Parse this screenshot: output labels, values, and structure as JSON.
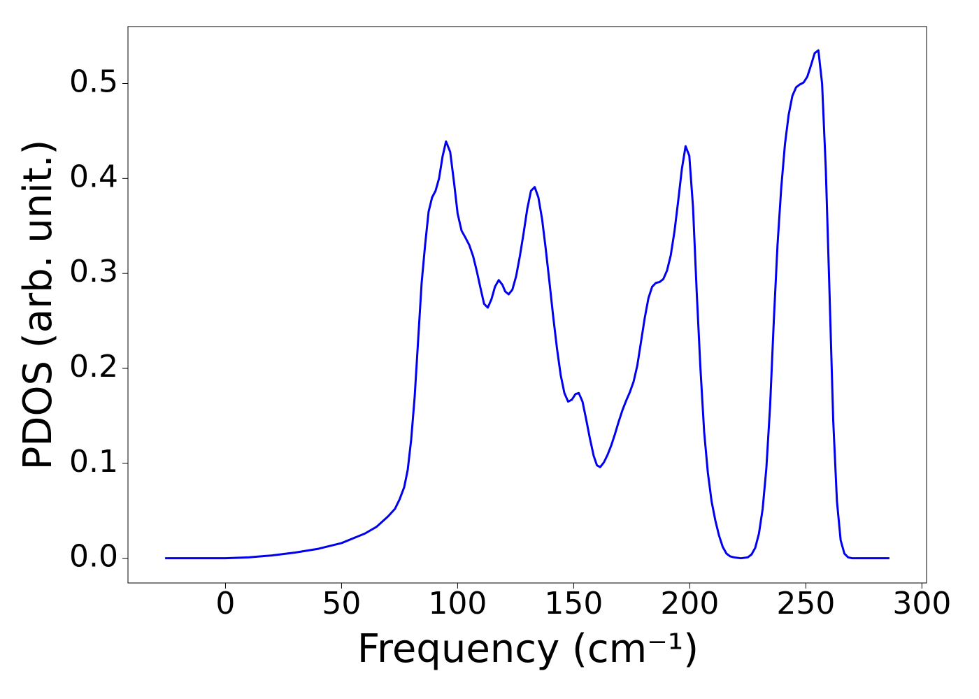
{
  "chart_data": {
    "type": "line",
    "xlabel": "Frequency (cm⁻¹)",
    "ylabel": "PDOS (arb. unit.)",
    "xlim": [
      -42,
      302
    ],
    "ylim": [
      -0.026,
      0.56
    ],
    "xticks": [
      0,
      50,
      100,
      150,
      200,
      250,
      300
    ],
    "yticks": [
      {
        "value": 0,
        "label": "0.0"
      },
      0.1,
      0.2,
      0.3,
      0.4,
      0.5
    ],
    "series": [
      {
        "color": "#0000ee",
        "x": [
          -26,
          0,
          10,
          20,
          30,
          40,
          50,
          60,
          65,
          70,
          73,
          75,
          77,
          78.5,
          80,
          81.5,
          83,
          84.5,
          86,
          87.5,
          89,
          90.5,
          92,
          93.5,
          95,
          96.8,
          98.5,
          100,
          101.7,
          103.3,
          105,
          106.7,
          108.3,
          110,
          111.4,
          113,
          114.6,
          116.1,
          117.7,
          119.3,
          120.5,
          122,
          123.6,
          125.2,
          126.8,
          128.4,
          130,
          131.6,
          133.2,
          134.8,
          136.4,
          138,
          139.6,
          141.2,
          142.8,
          144.4,
          146,
          147.6,
          149.2,
          150.8,
          152.2,
          153.8,
          155.4,
          157,
          158.6,
          160,
          161.4,
          163,
          164.6,
          166.2,
          167.8,
          169.4,
          171,
          172.6,
          174.2,
          175.8,
          177.4,
          179,
          180.6,
          182.2,
          183.8,
          185.4,
          187,
          188.6,
          190.2,
          191.8,
          193.4,
          195,
          196.6,
          198.2,
          199.8,
          201.4,
          203,
          204.6,
          206.2,
          207.8,
          209.4,
          211,
          212.6,
          214.2,
          215.8,
          217.4,
          219,
          222,
          225,
          226.6,
          228.2,
          229.8,
          231.4,
          233,
          234.6,
          236.2,
          237.8,
          239.4,
          241,
          242.6,
          244.2,
          245.8,
          247.4,
          249,
          250.6,
          252.2,
          253.8,
          255.4,
          257,
          258.6,
          260.2,
          261.8,
          263.4,
          265,
          266.6,
          268.2,
          270,
          286
        ],
        "values": [
          0,
          0,
          0.001,
          0.003,
          0.006,
          0.01,
          0.016,
          0.026,
          0.033,
          0.044,
          0.052,
          0.062,
          0.075,
          0.093,
          0.125,
          0.17,
          0.23,
          0.29,
          0.33,
          0.365,
          0.38,
          0.387,
          0.4,
          0.423,
          0.439,
          0.428,
          0.395,
          0.363,
          0.345,
          0.338,
          0.33,
          0.318,
          0.302,
          0.283,
          0.268,
          0.264,
          0.273,
          0.286,
          0.293,
          0.288,
          0.281,
          0.278,
          0.283,
          0.297,
          0.318,
          0.342,
          0.368,
          0.387,
          0.391,
          0.38,
          0.357,
          0.325,
          0.29,
          0.254,
          0.221,
          0.193,
          0.174,
          0.165,
          0.167,
          0.173,
          0.174,
          0.165,
          0.146,
          0.126,
          0.108,
          0.098,
          0.096,
          0.101,
          0.109,
          0.119,
          0.131,
          0.144,
          0.156,
          0.166,
          0.175,
          0.186,
          0.203,
          0.228,
          0.253,
          0.274,
          0.286,
          0.29,
          0.291,
          0.294,
          0.303,
          0.319,
          0.344,
          0.376,
          0.41,
          0.434,
          0.424,
          0.37,
          0.28,
          0.2,
          0.133,
          0.09,
          0.06,
          0.04,
          0.024,
          0.012,
          0.005,
          0.002,
          0.001,
          0,
          0.001,
          0.004,
          0.011,
          0.026,
          0.052,
          0.095,
          0.16,
          0.25,
          0.33,
          0.39,
          0.436,
          0.467,
          0.487,
          0.496,
          0.499,
          0.501,
          0.507,
          0.519,
          0.532,
          0.535,
          0.5,
          0.41,
          0.28,
          0.145,
          0.06,
          0.019,
          0.005,
          0.001,
          0,
          0
        ]
      }
    ]
  }
}
